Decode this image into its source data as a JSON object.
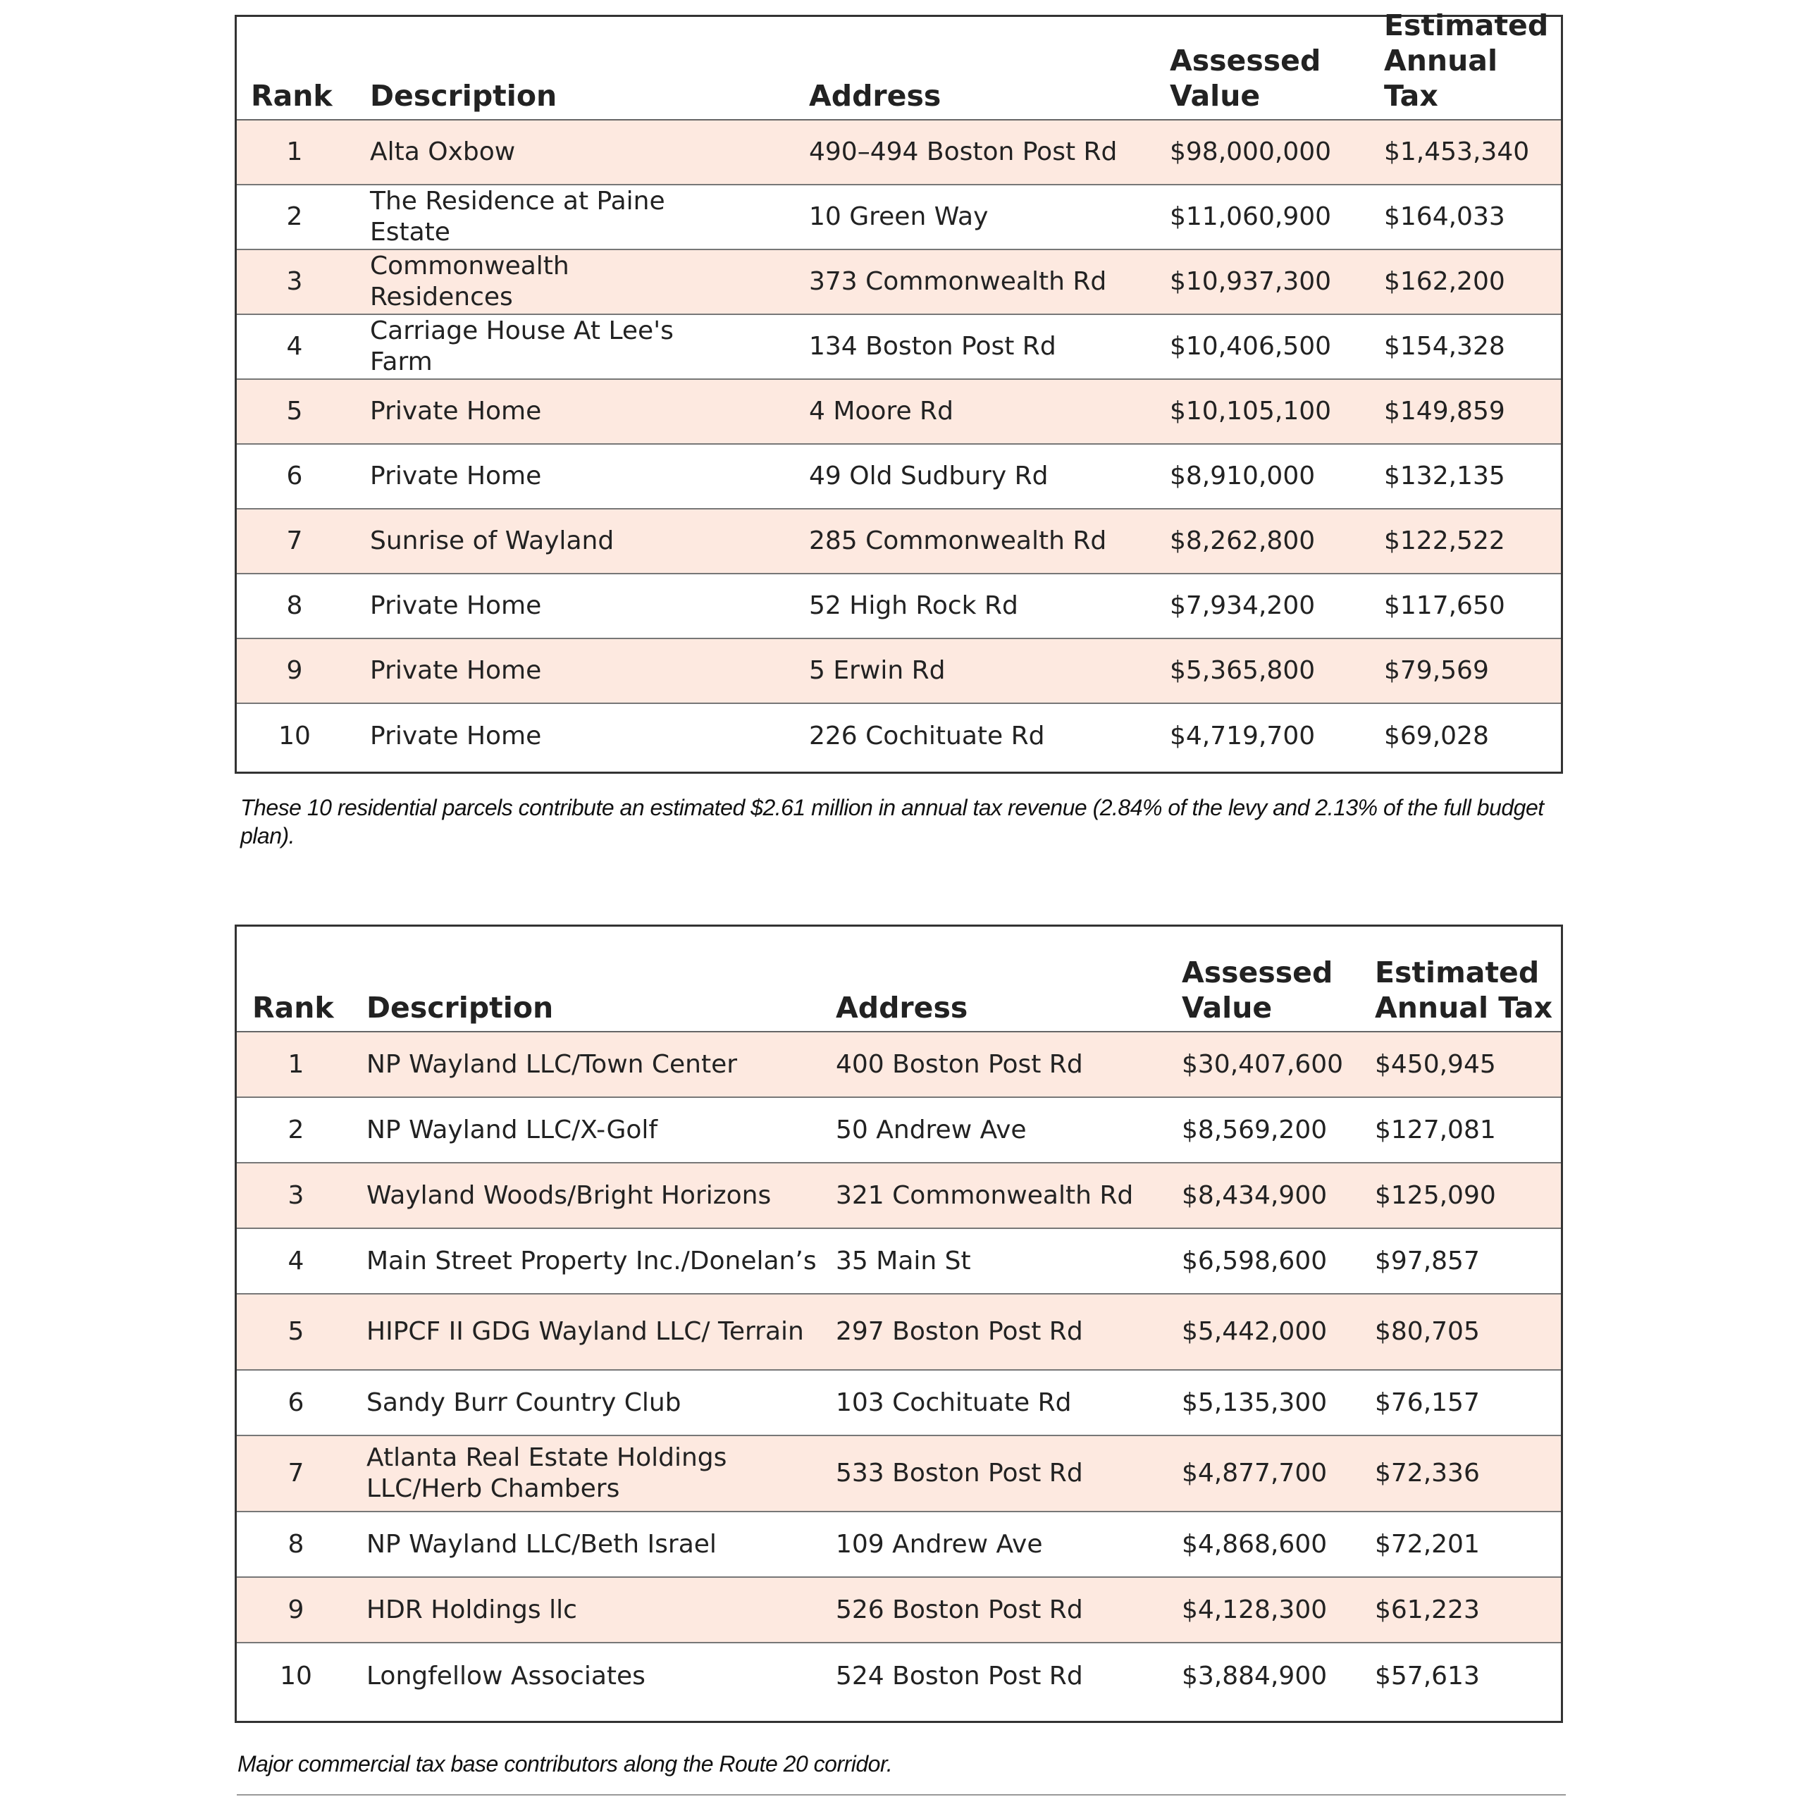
{
  "colors": {
    "alt_row": "#fde9e0",
    "border": "#333333"
  },
  "tables": [
    {
      "headers": {
        "rank": "Rank",
        "description": "Description",
        "address": "Address",
        "assessed": [
          "Assessed",
          "Value"
        ],
        "tax": [
          "Estimated",
          "Annual Tax"
        ]
      },
      "rows": [
        {
          "rank": "1",
          "description": "Alta Oxbow",
          "address": "490–494 Boston Post Rd",
          "assessed": "$98,000,000",
          "tax": "$1,453,340"
        },
        {
          "rank": "2",
          "description": "The Residence at Paine Estate",
          "address": "10 Green Way",
          "assessed": "$11,060,900",
          "tax": "$164,033"
        },
        {
          "rank": "3",
          "description": "Commonwealth Residences",
          "address": "373 Commonwealth Rd",
          "assessed": "$10,937,300",
          "tax": "$162,200"
        },
        {
          "rank": "4",
          "description": "Carriage House At Lee's Farm",
          "address": "134 Boston Post Rd",
          "assessed": "$10,406,500",
          "tax": "$154,328"
        },
        {
          "rank": "5",
          "description": "Private Home",
          "address": "4 Moore Rd",
          "assessed": "$10,105,100",
          "tax": "$149,859"
        },
        {
          "rank": "6",
          "description": "Private Home",
          "address": "49 Old Sudbury Rd",
          "assessed": "$8,910,000",
          "tax": "$132,135"
        },
        {
          "rank": "7",
          "description": "Sunrise of Wayland",
          "address": "285 Commonwealth Rd",
          "assessed": "$8,262,800",
          "tax": "$122,522"
        },
        {
          "rank": "8",
          "description": "Private Home",
          "address": "52 High Rock Rd",
          "assessed": "$7,934,200",
          "tax": "$117,650"
        },
        {
          "rank": "9",
          "description": "Private Home",
          "address": "5 Erwin Rd",
          "assessed": "$5,365,800",
          "tax": "$79,569"
        },
        {
          "rank": "10",
          "description": "Private Home",
          "address": "226 Cochituate Rd",
          "assessed": "$4,719,700",
          "tax": "$69,028"
        }
      ],
      "caption": "These 10 residential parcels contribute an estimated $2.61 million in annual tax revenue (2.84% of the levy and 2.13% of the full budget plan)."
    },
    {
      "headers": {
        "rank": "Rank",
        "description": "Description",
        "address": "Address",
        "assessed": [
          "Assessed",
          "Value"
        ],
        "tax": [
          "Estimated",
          "Annual Tax"
        ]
      },
      "rows": [
        {
          "rank": "1",
          "description": "NP Wayland LLC/Town Center",
          "address": "400 Boston Post Rd",
          "assessed": "$30,407,600",
          "tax": "$450,945"
        },
        {
          "rank": "2",
          "description": "NP Wayland LLC/X-Golf",
          "address": "50 Andrew Ave",
          "assessed": "$8,569,200",
          "tax": "$127,081"
        },
        {
          "rank": "3",
          "description": "Wayland Woods/Bright Horizons",
          "address": "321 Commonwealth Rd",
          "assessed": "$8,434,900",
          "tax": "$125,090"
        },
        {
          "rank": "4",
          "description": "Main Street Property Inc./Donelan’s",
          "address": "35 Main St",
          "assessed": "$6,598,600",
          "tax": "$97,857"
        },
        {
          "rank": "5",
          "description": "HIPCF II GDG Wayland LLC/ Terrain",
          "address": "297 Boston Post Rd",
          "assessed": "$5,442,000",
          "tax": "$80,705"
        },
        {
          "rank": "6",
          "description": "Sandy Burr Country Club",
          "address": "103 Cochituate Rd",
          "assessed": "$5,135,300",
          "tax": "$76,157"
        },
        {
          "rank": "7",
          "description": "Atlanta Real Estate Holdings LLC/Herb Chambers",
          "address": "533 Boston Post Rd",
          "assessed": "$4,877,700",
          "tax": "$72,336"
        },
        {
          "rank": "8",
          "description": "NP Wayland LLC/Beth Israel",
          "address": "109 Andrew Ave",
          "assessed": "$4,868,600",
          "tax": "$72,201"
        },
        {
          "rank": "9",
          "description": "HDR Holdings llc",
          "address": "526 Boston Post Rd",
          "assessed": "$4,128,300",
          "tax": "$61,223"
        },
        {
          "rank": "10",
          "description": "Longfellow Associates",
          "address": "524 Boston Post Rd",
          "assessed": "$3,884,900",
          "tax": "$57,613"
        }
      ],
      "caption": "Major commercial tax base contributors along the Route 20 corridor."
    }
  ]
}
